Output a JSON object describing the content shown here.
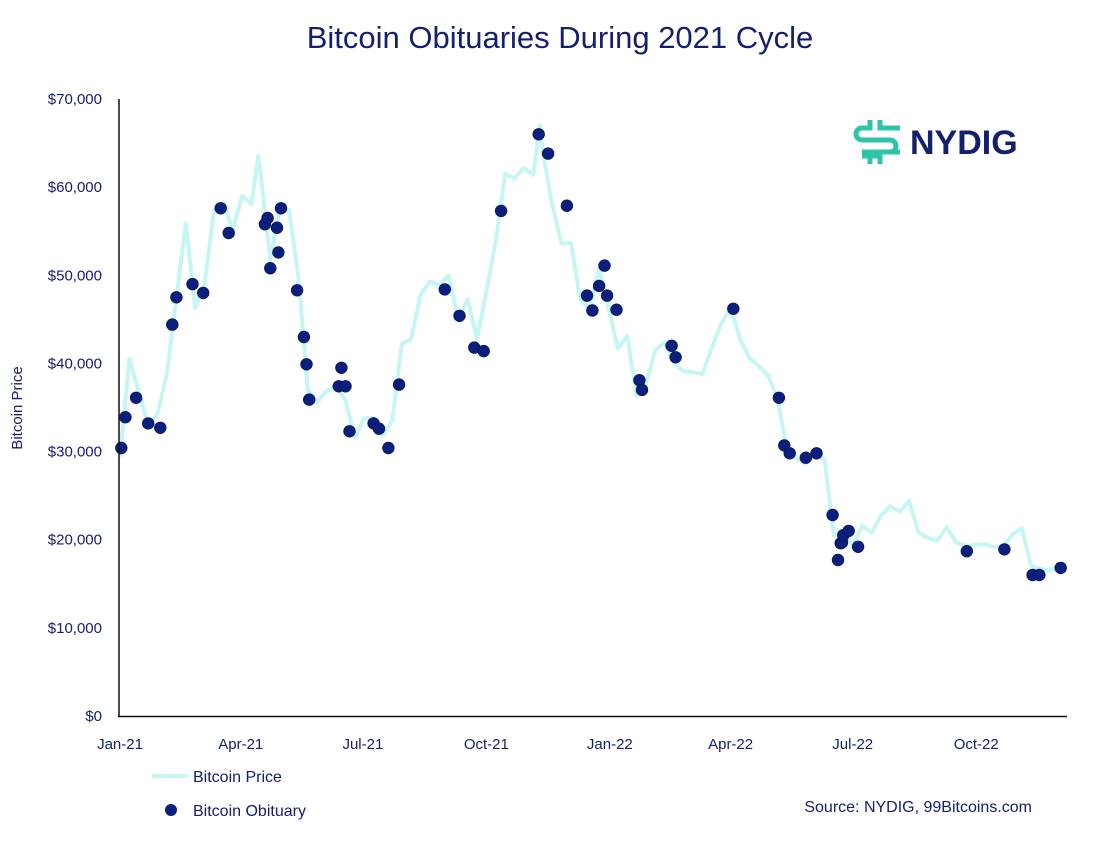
{
  "chart_data": {
    "type": "line+scatter",
    "title": "Bitcoin Obituaries During 2021 Cycle",
    "ylabel": "Bitcoin Price",
    "xlabel": "",
    "xlim": [
      "2021-01-01",
      "2022-12-31"
    ],
    "ylim": [
      0,
      70000
    ],
    "grid": false,
    "x_ticks": [
      {
        "label": "Jan-21",
        "date": "2021-01-01"
      },
      {
        "label": "Apr-21",
        "date": "2021-04-01"
      },
      {
        "label": "Jul-21",
        "date": "2021-07-01"
      },
      {
        "label": "Oct-21",
        "date": "2021-10-01"
      },
      {
        "label": "Jan-22",
        "date": "2022-01-01"
      },
      {
        "label": "Apr-22",
        "date": "2022-04-01"
      },
      {
        "label": "Jul-22",
        "date": "2022-07-01"
      },
      {
        "label": "Oct-22",
        "date": "2022-10-01"
      }
    ],
    "y_ticks": [
      {
        "label": "$0",
        "value": 0
      },
      {
        "label": "$10,000",
        "value": 10000
      },
      {
        "label": "$20,000",
        "value": 20000
      },
      {
        "label": "$30,000",
        "value": 30000
      },
      {
        "label": "$40,000",
        "value": 40000
      },
      {
        "label": "$50,000",
        "value": 50000
      },
      {
        "label": "$60,000",
        "value": 60000
      },
      {
        "label": "$70,000",
        "value": 70000
      }
    ],
    "legend_position": "bottom-left",
    "colors": {
      "price": "#c6f6f3",
      "obituary": "#0c1f7c",
      "text": "#14206e",
      "logo_mark": "#2ec4a9"
    },
    "series": [
      {
        "name": "Bitcoin Price",
        "type": "line",
        "points": [
          [
            "2021-01-01",
            29400
          ],
          [
            "2021-01-08",
            40500
          ],
          [
            "2021-01-15",
            36800
          ],
          [
            "2021-01-22",
            33000
          ],
          [
            "2021-01-29",
            34300
          ],
          [
            "2021-02-05",
            38900
          ],
          [
            "2021-02-12",
            47400
          ],
          [
            "2021-02-19",
            55900
          ],
          [
            "2021-02-26",
            46300
          ],
          [
            "2021-03-05",
            48900
          ],
          [
            "2021-03-12",
            57300
          ],
          [
            "2021-03-19",
            58300
          ],
          [
            "2021-03-26",
            55100
          ],
          [
            "2021-04-02",
            59000
          ],
          [
            "2021-04-09",
            58100
          ],
          [
            "2021-04-14",
            63500
          ],
          [
            "2021-04-16",
            61300
          ],
          [
            "2021-04-23",
            51700
          ],
          [
            "2021-04-30",
            57700
          ],
          [
            "2021-05-07",
            57400
          ],
          [
            "2021-05-14",
            49700
          ],
          [
            "2021-05-21",
            37000
          ],
          [
            "2021-05-28",
            35600
          ],
          [
            "2021-06-04",
            36900
          ],
          [
            "2021-06-11",
            37300
          ],
          [
            "2021-06-18",
            35800
          ],
          [
            "2021-06-25",
            31600
          ],
          [
            "2021-07-02",
            33800
          ],
          [
            "2021-07-09",
            33800
          ],
          [
            "2021-07-16",
            31800
          ],
          [
            "2021-07-23",
            33600
          ],
          [
            "2021-07-30",
            42200
          ],
          [
            "2021-08-06",
            42800
          ],
          [
            "2021-08-13",
            47800
          ],
          [
            "2021-08-20",
            49300
          ],
          [
            "2021-08-27",
            48900
          ],
          [
            "2021-09-03",
            50000
          ],
          [
            "2021-09-10",
            44900
          ],
          [
            "2021-09-17",
            47300
          ],
          [
            "2021-09-24",
            42800
          ],
          [
            "2021-10-01",
            48200
          ],
          [
            "2021-10-08",
            53900
          ],
          [
            "2021-10-15",
            61500
          ],
          [
            "2021-10-22",
            61000
          ],
          [
            "2021-10-29",
            62200
          ],
          [
            "2021-11-05",
            61400
          ],
          [
            "2021-11-10",
            67000
          ],
          [
            "2021-11-12",
            64100
          ],
          [
            "2021-11-19",
            58100
          ],
          [
            "2021-11-26",
            53600
          ],
          [
            "2021-12-03",
            53700
          ],
          [
            "2021-12-10",
            47200
          ],
          [
            "2021-12-17",
            46200
          ],
          [
            "2021-12-24",
            50800
          ],
          [
            "2021-12-31",
            46300
          ],
          [
            "2022-01-07",
            41700
          ],
          [
            "2022-01-14",
            43100
          ],
          [
            "2022-01-21",
            36300
          ],
          [
            "2022-01-28",
            37700
          ],
          [
            "2022-02-04",
            41500
          ],
          [
            "2022-02-11",
            42400
          ],
          [
            "2022-02-18",
            40000
          ],
          [
            "2022-02-25",
            39100
          ],
          [
            "2022-03-04",
            39000
          ],
          [
            "2022-03-11",
            38800
          ],
          [
            "2022-03-18",
            41800
          ],
          [
            "2022-03-25",
            44500
          ],
          [
            "2022-04-01",
            46300
          ],
          [
            "2022-04-08",
            42800
          ],
          [
            "2022-04-15",
            40600
          ],
          [
            "2022-04-22",
            39700
          ],
          [
            "2022-04-29",
            38600
          ],
          [
            "2022-05-06",
            36000
          ],
          [
            "2022-05-13",
            30100
          ],
          [
            "2022-05-20",
            29200
          ],
          [
            "2022-05-27",
            28600
          ],
          [
            "2022-06-03",
            29700
          ],
          [
            "2022-06-10",
            29100
          ],
          [
            "2022-06-17",
            20500
          ],
          [
            "2022-06-24",
            21200
          ],
          [
            "2022-07-01",
            19300
          ],
          [
            "2022-07-08",
            21600
          ],
          [
            "2022-07-15",
            20800
          ],
          [
            "2022-07-22",
            22700
          ],
          [
            "2022-07-29",
            23800
          ],
          [
            "2022-08-05",
            23200
          ],
          [
            "2022-08-12",
            24400
          ],
          [
            "2022-08-19",
            20800
          ],
          [
            "2022-08-26",
            20200
          ],
          [
            "2022-09-02",
            19900
          ],
          [
            "2022-09-09",
            21400
          ],
          [
            "2022-09-16",
            19700
          ],
          [
            "2022-09-23",
            19300
          ],
          [
            "2022-09-30",
            19400
          ],
          [
            "2022-10-07",
            19500
          ],
          [
            "2022-10-14",
            19200
          ],
          [
            "2022-10-21",
            19200
          ],
          [
            "2022-10-28",
            20600
          ],
          [
            "2022-11-04",
            21300
          ],
          [
            "2022-11-11",
            17000
          ],
          [
            "2022-11-18",
            16700
          ],
          [
            "2022-11-25",
            16500
          ],
          [
            "2022-12-02",
            17000
          ],
          [
            "2022-12-05",
            17100
          ]
        ]
      },
      {
        "name": "Bitcoin Obituary",
        "type": "scatter",
        "points": [
          [
            "2021-01-02",
            30400
          ],
          [
            "2021-01-05",
            33900
          ],
          [
            "2021-01-13",
            36100
          ],
          [
            "2021-01-22",
            33200
          ],
          [
            "2021-01-31",
            32700
          ],
          [
            "2021-02-09",
            44400
          ],
          [
            "2021-02-12",
            47500
          ],
          [
            "2021-02-24",
            49000
          ],
          [
            "2021-03-04",
            48000
          ],
          [
            "2021-03-17",
            57600
          ],
          [
            "2021-03-23",
            54800
          ],
          [
            "2021-04-19",
            55800
          ],
          [
            "2021-04-21",
            56500
          ],
          [
            "2021-04-23",
            50800
          ],
          [
            "2021-04-28",
            55400
          ],
          [
            "2021-04-29",
            52600
          ],
          [
            "2021-05-01",
            57600
          ],
          [
            "2021-05-13",
            48300
          ],
          [
            "2021-05-18",
            43000
          ],
          [
            "2021-05-20",
            39900
          ],
          [
            "2021-05-22",
            35900
          ],
          [
            "2021-06-13",
            37400
          ],
          [
            "2021-06-15",
            39500
          ],
          [
            "2021-06-18",
            37400
          ],
          [
            "2021-06-21",
            32300
          ],
          [
            "2021-07-09",
            33200
          ],
          [
            "2021-07-13",
            32600
          ],
          [
            "2021-07-20",
            30400
          ],
          [
            "2021-07-28",
            37600
          ],
          [
            "2021-08-31",
            48400
          ],
          [
            "2021-09-11",
            45400
          ],
          [
            "2021-09-22",
            41800
          ],
          [
            "2021-09-29",
            41400
          ],
          [
            "2021-10-12",
            57300
          ],
          [
            "2021-11-09",
            66000
          ],
          [
            "2021-11-16",
            63800
          ],
          [
            "2021-11-30",
            57900
          ],
          [
            "2021-12-15",
            47700
          ],
          [
            "2021-12-19",
            46000
          ],
          [
            "2021-12-24",
            48800
          ],
          [
            "2021-12-28",
            51100
          ],
          [
            "2021-12-30",
            47700
          ],
          [
            "2022-01-06",
            46100
          ],
          [
            "2022-01-23",
            38100
          ],
          [
            "2022-01-25",
            37000
          ],
          [
            "2022-02-16",
            42000
          ],
          [
            "2022-02-19",
            40700
          ],
          [
            "2022-04-03",
            46200
          ],
          [
            "2022-05-07",
            36100
          ],
          [
            "2022-05-11",
            30700
          ],
          [
            "2022-05-15",
            29800
          ],
          [
            "2022-05-27",
            29300
          ],
          [
            "2022-06-04",
            29800
          ],
          [
            "2022-06-16",
            22800
          ],
          [
            "2022-06-20",
            17700
          ],
          [
            "2022-06-22",
            19600
          ],
          [
            "2022-06-23",
            19700
          ],
          [
            "2022-06-24",
            20500
          ],
          [
            "2022-06-28",
            21000
          ],
          [
            "2022-07-05",
            19200
          ],
          [
            "2022-09-24",
            18700
          ],
          [
            "2022-10-22",
            18900
          ],
          [
            "2022-11-12",
            16000
          ],
          [
            "2022-11-17",
            16000
          ],
          [
            "2022-12-03",
            16800
          ]
        ]
      }
    ]
  },
  "legend": {
    "price_label": "Bitcoin Price",
    "obituary_label": "Bitcoin Obituary"
  },
  "source": "Source: NYDIG, 99Bitcoins.com",
  "logo": {
    "text": "NYDIG",
    "icon": "nydig-logo-mark"
  }
}
